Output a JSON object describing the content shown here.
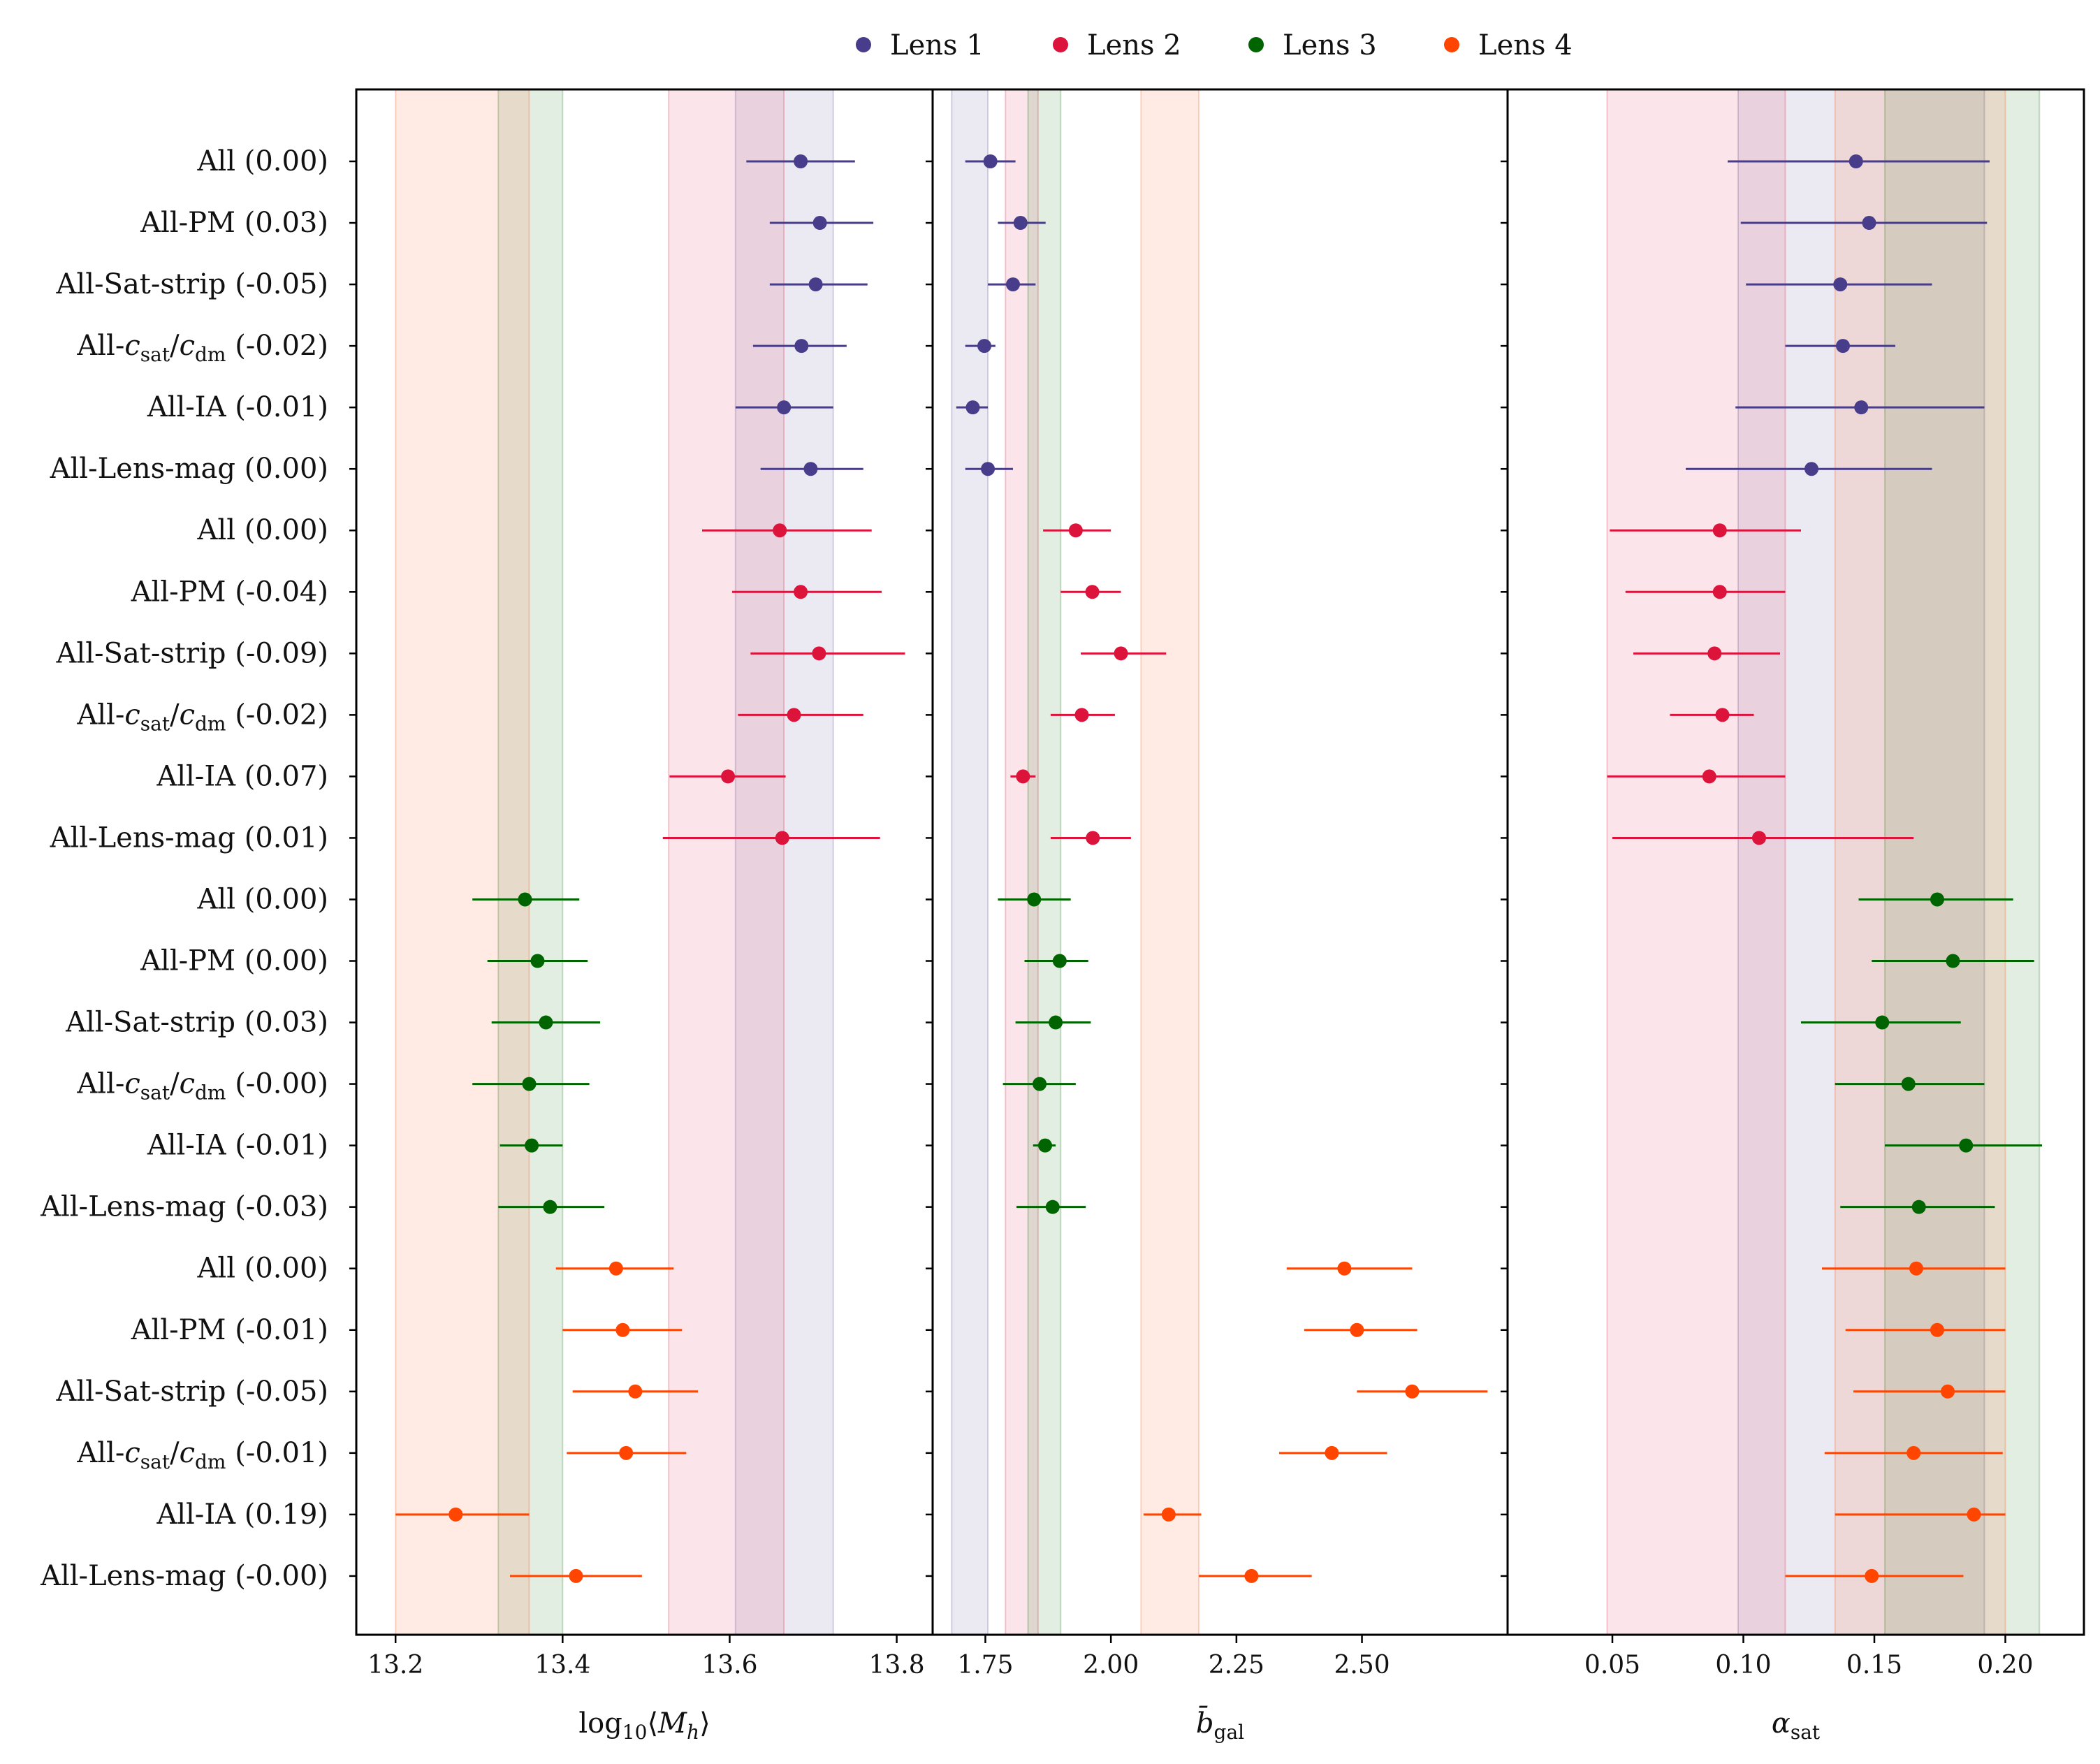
{
  "chart_data": {
    "type": "scatter",
    "subtype": "forest-plot-errorbars",
    "legend": {
      "placement": "top-center",
      "entries": [
        {
          "name": "Lens 1",
          "color": "#483d8b"
        },
        {
          "name": "Lens 2",
          "color": "#dc143c"
        },
        {
          "name": "Lens 3",
          "color": "#006400"
        },
        {
          "name": "Lens 4",
          "color": "#ff4500"
        }
      ]
    },
    "rows": [
      {
        "label": "All (0.00)",
        "group": 0
      },
      {
        "label": "All-PM (0.03)",
        "group": 0
      },
      {
        "label": "All-Sat-strip (-0.05)",
        "group": 0
      },
      {
        "label": "All-c_sat/c_dm (-0.02)",
        "group": 0
      },
      {
        "label": "All-IA (-0.01)",
        "group": 0
      },
      {
        "label": "All-Lens-mag (0.00)",
        "group": 0
      },
      {
        "label": "All (0.00)",
        "group": 1
      },
      {
        "label": "All-PM (-0.04)",
        "group": 1
      },
      {
        "label": "All-Sat-strip (-0.09)",
        "group": 1
      },
      {
        "label": "All-c_sat/c_dm (-0.02)",
        "group": 1
      },
      {
        "label": "All-IA (0.07)",
        "group": 1
      },
      {
        "label": "All-Lens-mag (0.01)",
        "group": 1
      },
      {
        "label": "All (0.00)",
        "group": 2
      },
      {
        "label": "All-PM (0.00)",
        "group": 2
      },
      {
        "label": "All-Sat-strip (0.03)",
        "group": 2
      },
      {
        "label": "All-c_sat/c_dm (-0.00)",
        "group": 2
      },
      {
        "label": "All-IA (-0.01)",
        "group": 2
      },
      {
        "label": "All-Lens-mag (-0.03)",
        "group": 2
      },
      {
        "label": "All (0.00)",
        "group": 3
      },
      {
        "label": "All-PM (-0.01)",
        "group": 3
      },
      {
        "label": "All-Sat-strip (-0.05)",
        "group": 3
      },
      {
        "label": "All-c_sat/c_dm (-0.01)",
        "group": 3
      },
      {
        "label": "All-IA (0.19)",
        "group": 3
      },
      {
        "label": "All-Lens-mag (-0.00)",
        "group": 3
      }
    ],
    "panels": [
      {
        "xlabel": "log10⟨Mh⟩",
        "xlim": [
          13.153,
          13.843
        ],
        "ticks": [
          13.2,
          13.4,
          13.6,
          13.8
        ],
        "tick_labels": [
          "13.2",
          "13.4",
          "13.6",
          "13.8"
        ],
        "bands": [
          {
            "group": 0,
            "lo": 13.607,
            "hi": 13.724
          },
          {
            "group": 1,
            "lo": 13.527,
            "hi": 13.665
          },
          {
            "group": 2,
            "lo": 13.323,
            "hi": 13.4
          },
          {
            "group": 3,
            "lo": 13.2,
            "hi": 13.36
          }
        ],
        "points": [
          [
            13.685,
            13.62,
            13.75
          ],
          [
            13.708,
            13.648,
            13.772
          ],
          [
            13.703,
            13.648,
            13.765
          ],
          [
            13.686,
            13.628,
            13.74
          ],
          [
            13.665,
            13.607,
            13.724
          ],
          [
            13.697,
            13.637,
            13.76
          ],
          [
            13.66,
            13.567,
            13.77
          ],
          [
            13.685,
            13.603,
            13.782
          ],
          [
            13.707,
            13.625,
            13.81
          ],
          [
            13.677,
            13.61,
            13.76
          ],
          [
            13.598,
            13.528,
            13.667
          ],
          [
            13.663,
            13.52,
            13.78
          ],
          [
            13.355,
            13.292,
            13.42
          ],
          [
            13.37,
            13.31,
            13.43
          ],
          [
            13.38,
            13.315,
            13.445
          ],
          [
            13.36,
            13.292,
            13.432
          ],
          [
            13.363,
            13.325,
            13.4
          ],
          [
            13.385,
            13.323,
            13.45
          ],
          [
            13.464,
            13.392,
            13.533
          ],
          [
            13.472,
            13.4,
            13.543
          ],
          [
            13.487,
            13.412,
            13.562
          ],
          [
            13.476,
            13.405,
            13.548
          ],
          [
            13.272,
            13.2,
            13.36
          ],
          [
            13.416,
            13.337,
            13.495
          ]
        ]
      },
      {
        "xlabel": "b̄gal",
        "xlim": [
          1.645,
          2.79
        ],
        "ticks": [
          1.75,
          2.0,
          2.25,
          2.5
        ],
        "tick_labels": [
          "1.75",
          "2.00",
          "2.25",
          "2.50"
        ],
        "bands": [
          {
            "group": 0,
            "lo": 1.683,
            "hi": 1.755
          },
          {
            "group": 1,
            "lo": 1.79,
            "hi": 1.855
          },
          {
            "group": 2,
            "lo": 1.835,
            "hi": 1.9
          },
          {
            "group": 3,
            "lo": 2.06,
            "hi": 2.175
          }
        ],
        "points": [
          [
            1.76,
            1.71,
            1.81
          ],
          [
            1.82,
            1.775,
            1.87
          ],
          [
            1.805,
            1.755,
            1.85
          ],
          [
            1.748,
            1.71,
            1.77
          ],
          [
            1.725,
            1.692,
            1.755
          ],
          [
            1.755,
            1.71,
            1.805
          ],
          [
            1.93,
            1.865,
            2.0
          ],
          [
            1.963,
            1.9,
            2.02
          ],
          [
            2.02,
            1.94,
            2.11
          ],
          [
            1.942,
            1.88,
            2.008
          ],
          [
            1.825,
            1.8,
            1.85
          ],
          [
            1.964,
            1.88,
            2.04
          ],
          [
            1.847,
            1.775,
            1.92
          ],
          [
            1.898,
            1.828,
            1.955
          ],
          [
            1.89,
            1.81,
            1.96
          ],
          [
            1.858,
            1.785,
            1.93
          ],
          [
            1.869,
            1.845,
            1.89
          ],
          [
            1.884,
            1.812,
            1.95
          ],
          [
            2.465,
            2.35,
            2.6
          ],
          [
            2.49,
            2.385,
            2.61
          ],
          [
            2.6,
            2.49,
            2.75
          ],
          [
            2.44,
            2.335,
            2.55
          ],
          [
            2.115,
            2.065,
            2.18
          ],
          [
            2.28,
            2.175,
            2.4
          ]
        ]
      },
      {
        "xlabel": "αsat",
        "xlim": [
          0.01,
          0.23
        ],
        "ticks": [
          0.05,
          0.1,
          0.15,
          0.2
        ],
        "tick_labels": [
          "0.05",
          "0.10",
          "0.15",
          "0.20"
        ],
        "bands": [
          {
            "group": 0,
            "lo": 0.098,
            "hi": 0.192
          },
          {
            "group": 1,
            "lo": 0.048,
            "hi": 0.116
          },
          {
            "group": 2,
            "lo": 0.154,
            "hi": 0.213
          },
          {
            "group": 3,
            "lo": 0.135,
            "hi": 0.2
          }
        ],
        "points": [
          [
            0.143,
            0.094,
            0.194
          ],
          [
            0.148,
            0.099,
            0.193
          ],
          [
            0.137,
            0.101,
            0.172
          ],
          [
            0.138,
            0.116,
            0.158
          ],
          [
            0.145,
            0.097,
            0.192
          ],
          [
            0.126,
            0.078,
            0.172
          ],
          [
            0.091,
            0.049,
            0.122
          ],
          [
            0.091,
            0.055,
            0.116
          ],
          [
            0.089,
            0.058,
            0.114
          ],
          [
            0.092,
            0.072,
            0.104
          ],
          [
            0.087,
            0.048,
            0.116
          ],
          [
            0.106,
            0.05,
            0.165
          ],
          [
            0.174,
            0.144,
            0.203
          ],
          [
            0.18,
            0.149,
            0.211
          ],
          [
            0.153,
            0.122,
            0.183
          ],
          [
            0.163,
            0.135,
            0.192
          ],
          [
            0.185,
            0.154,
            0.214
          ],
          [
            0.167,
            0.137,
            0.196
          ],
          [
            0.166,
            0.13,
            0.2
          ],
          [
            0.174,
            0.139,
            0.2
          ],
          [
            0.178,
            0.142,
            0.2
          ],
          [
            0.165,
            0.131,
            0.199
          ],
          [
            0.188,
            0.135,
            0.2
          ],
          [
            0.149,
            0.116,
            0.184
          ]
        ]
      }
    ]
  }
}
